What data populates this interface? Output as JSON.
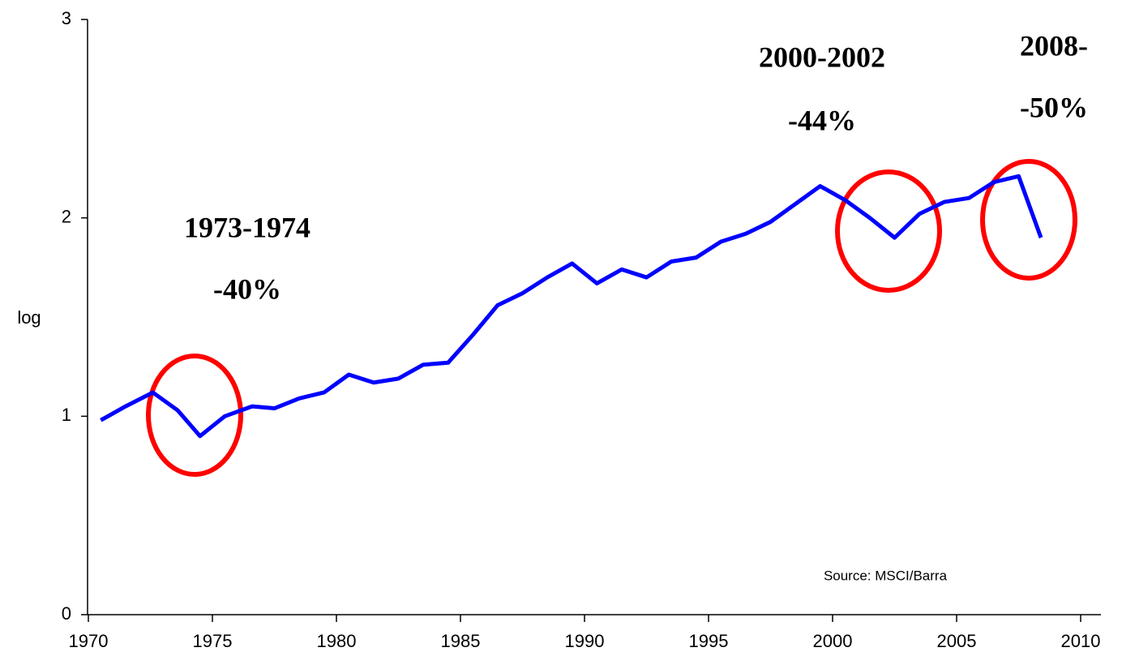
{
  "chart_data": {
    "type": "line",
    "y_label": "log",
    "x": [
      1970.5,
      1971.5,
      1972.6,
      1973.6,
      1974.5,
      1975.5,
      1976.6,
      1977.5,
      1978.5,
      1979.5,
      1980.5,
      1981.5,
      1982.5,
      1983.5,
      1984.5,
      1985.5,
      1986.5,
      1987.5,
      1988.5,
      1989.5,
      1990.5,
      1991.5,
      1992.5,
      1993.5,
      1994.5,
      1995.5,
      1996.5,
      1997.5,
      1998.5,
      1999.5,
      2000.5,
      2001.5,
      2002.5,
      2003.5,
      2004.5,
      2005.5,
      2006.5,
      2007.5,
      2008.4
    ],
    "series": [
      {
        "color": "#0000ff",
        "values": [
          0.98,
          1.05,
          1.12,
          1.03,
          0.9,
          1.0,
          1.05,
          1.04,
          1.09,
          1.12,
          1.21,
          1.17,
          1.19,
          1.26,
          1.27,
          1.41,
          1.56,
          1.62,
          1.7,
          1.77,
          1.67,
          1.74,
          1.7,
          1.78,
          1.8,
          1.88,
          1.92,
          1.98,
          2.07,
          2.16,
          2.09,
          2.0,
          1.9,
          2.02,
          2.08,
          2.1,
          2.18,
          2.21,
          1.9
        ]
      }
    ],
    "xlim": [
      1970,
      2010
    ],
    "xticks": [
      1970,
      1975,
      1980,
      1985,
      1990,
      1995,
      2000,
      2005,
      2010
    ],
    "ylim": [
      0,
      3
    ],
    "yticks": [
      0,
      1,
      2,
      3
    ],
    "grid": false,
    "annotations": [
      "1973-1974",
      "-40%",
      "2000-2002",
      "-44%",
      "2008-",
      "-50%",
      "Source: MSCI/Barra"
    ]
  }
}
